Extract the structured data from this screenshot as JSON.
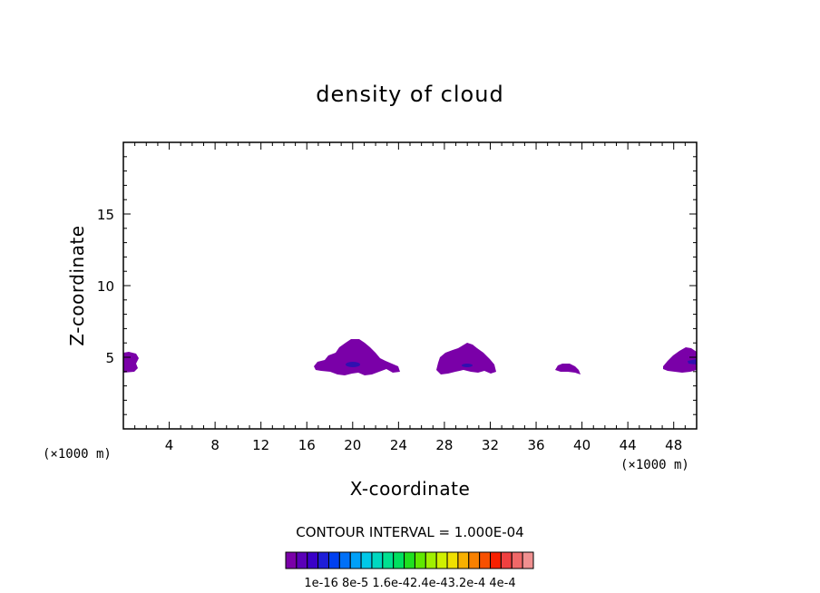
{
  "chart_data": {
    "type": "heatmap",
    "title": "density of cloud",
    "xlabel": "X-coordinate",
    "ylabel": "Z-coordinate",
    "x_unit_left": "(×1000 m)",
    "x_unit_right": "(×1000 m)",
    "xlim": [
      0,
      50
    ],
    "ylim": [
      0,
      20
    ],
    "x_ticks": [
      4,
      8,
      12,
      16,
      20,
      24,
      28,
      32,
      36,
      40,
      44,
      48
    ],
    "y_ticks": [
      5,
      10,
      15
    ],
    "contour_interval_text": "CONTOUR INTERVAL = 1.000E-04",
    "colorbar": {
      "labels": [
        "1e-16",
        "8e-5",
        "1.6e-4",
        "2.4e-4",
        "3.2e-4",
        "4e-4"
      ],
      "colors": [
        "#7a00a8",
        "#5a00b8",
        "#3a00c8",
        "#1e1ed8",
        "#0040f0",
        "#0070f8",
        "#00a0f8",
        "#00c8e8",
        "#00d8c0",
        "#00e090",
        "#00e060",
        "#20e020",
        "#60e800",
        "#a0f000",
        "#d0f000",
        "#f0e000",
        "#f8b000",
        "#f88000",
        "#f85000",
        "#f82000",
        "#f04040",
        "#f06868",
        "#f09090"
      ],
      "label_text": "1e-16 8e-5 1.6e-42.4e-43.2e-4 4e-4"
    },
    "cloud_regions": [
      {
        "name": "cloud-west-edge",
        "x_range": [
          0,
          1.3
        ],
        "z_range": [
          4.0,
          5.2
        ],
        "peak_level": 1
      },
      {
        "name": "cloud-near-20km",
        "x_range": [
          16.8,
          24.2
        ],
        "z_range": [
          3.9,
          6.2
        ],
        "peak_level": 2
      },
      {
        "name": "cloud-near-30km",
        "x_range": [
          27.6,
          32.6
        ],
        "z_range": [
          3.9,
          5.9
        ],
        "peak_level": 2
      },
      {
        "name": "cloud-near-38km",
        "x_range": [
          37.6,
          39.8
        ],
        "z_range": [
          3.9,
          4.5
        ],
        "peak_level": 1
      },
      {
        "name": "cloud-near-48km",
        "x_range": [
          46.8,
          50
        ],
        "z_range": [
          4.1,
          5.7
        ],
        "peak_level": 2
      }
    ]
  }
}
